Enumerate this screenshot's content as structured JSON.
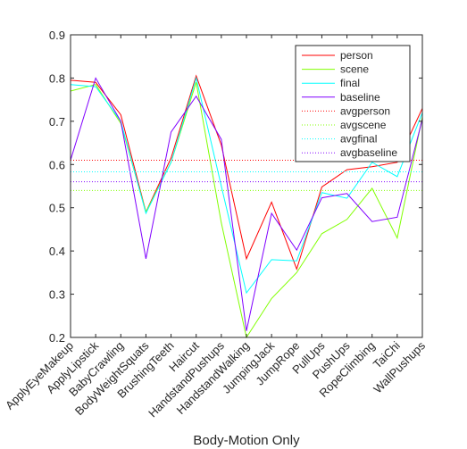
{
  "chart_data": {
    "type": "line",
    "title": "",
    "xlabel": "Body-Motion Only",
    "ylabel": "",
    "ylim": [
      0.2,
      0.9
    ],
    "yticks": [
      "0.2",
      "0.3",
      "0.4",
      "0.5",
      "0.6",
      "0.7",
      "0.8",
      "0.9"
    ],
    "categories": [
      "ApplyEyeMakeup",
      "ApplyLipstick",
      "BabyCrawling",
      "BodyWeightSquats",
      "BrushingTeeth",
      "Haircut",
      "HandstandPushups",
      "HandstandWalking",
      "JumpingJack",
      "JumpRope",
      "PullUps",
      "PushUps",
      "RopeClimbing",
      "TaiChi",
      "WallPushups"
    ],
    "series": [
      {
        "name": "person",
        "color": "#ff0000",
        "style": "solid",
        "values": [
          0.795,
          0.79,
          0.715,
          0.49,
          0.615,
          0.805,
          0.645,
          0.382,
          0.513,
          0.358,
          0.548,
          0.588,
          0.595,
          0.605,
          0.73
        ]
      },
      {
        "name": "scene",
        "color": "#80ff00",
        "style": "solid",
        "values": [
          0.77,
          0.785,
          0.695,
          0.49,
          0.605,
          0.79,
          0.465,
          0.2,
          0.29,
          0.35,
          0.44,
          0.473,
          0.545,
          0.43,
          0.71
        ]
      },
      {
        "name": "final",
        "color": "#00ffff",
        "style": "solid",
        "values": [
          0.785,
          0.78,
          0.7,
          0.487,
          0.605,
          0.8,
          0.55,
          0.303,
          0.38,
          0.377,
          0.535,
          0.522,
          0.605,
          0.572,
          0.72
        ]
      },
      {
        "name": "baseline",
        "color": "#8000ff",
        "style": "solid",
        "values": [
          0.61,
          0.8,
          0.7,
          0.382,
          0.675,
          0.758,
          0.658,
          0.215,
          0.487,
          0.402,
          0.523,
          0.533,
          0.468,
          0.478,
          0.705
        ]
      },
      {
        "name": "avgperson",
        "color": "#ff0000",
        "style": "dotted",
        "values": [
          0.61,
          0.61,
          0.61,
          0.61,
          0.61,
          0.61,
          0.61,
          0.61,
          0.61,
          0.61,
          0.61,
          0.61,
          0.61,
          0.61,
          0.61
        ]
      },
      {
        "name": "avgscene",
        "color": "#80ff00",
        "style": "dotted",
        "values": [
          0.54,
          0.54,
          0.54,
          0.54,
          0.54,
          0.54,
          0.54,
          0.54,
          0.54,
          0.54,
          0.54,
          0.54,
          0.54,
          0.54,
          0.54
        ]
      },
      {
        "name": "avgfinal",
        "color": "#00ffff",
        "style": "dotted",
        "values": [
          0.583,
          0.583,
          0.583,
          0.583,
          0.583,
          0.583,
          0.583,
          0.583,
          0.583,
          0.583,
          0.583,
          0.583,
          0.583,
          0.583,
          0.583
        ]
      },
      {
        "name": "avgbaseline",
        "color": "#8000ff",
        "style": "dotted",
        "values": [
          0.56,
          0.56,
          0.56,
          0.56,
          0.56,
          0.56,
          0.56,
          0.56,
          0.56,
          0.56,
          0.56,
          0.56,
          0.56,
          0.56,
          0.56
        ]
      }
    ],
    "grid": false,
    "legend_position": "top-right"
  }
}
